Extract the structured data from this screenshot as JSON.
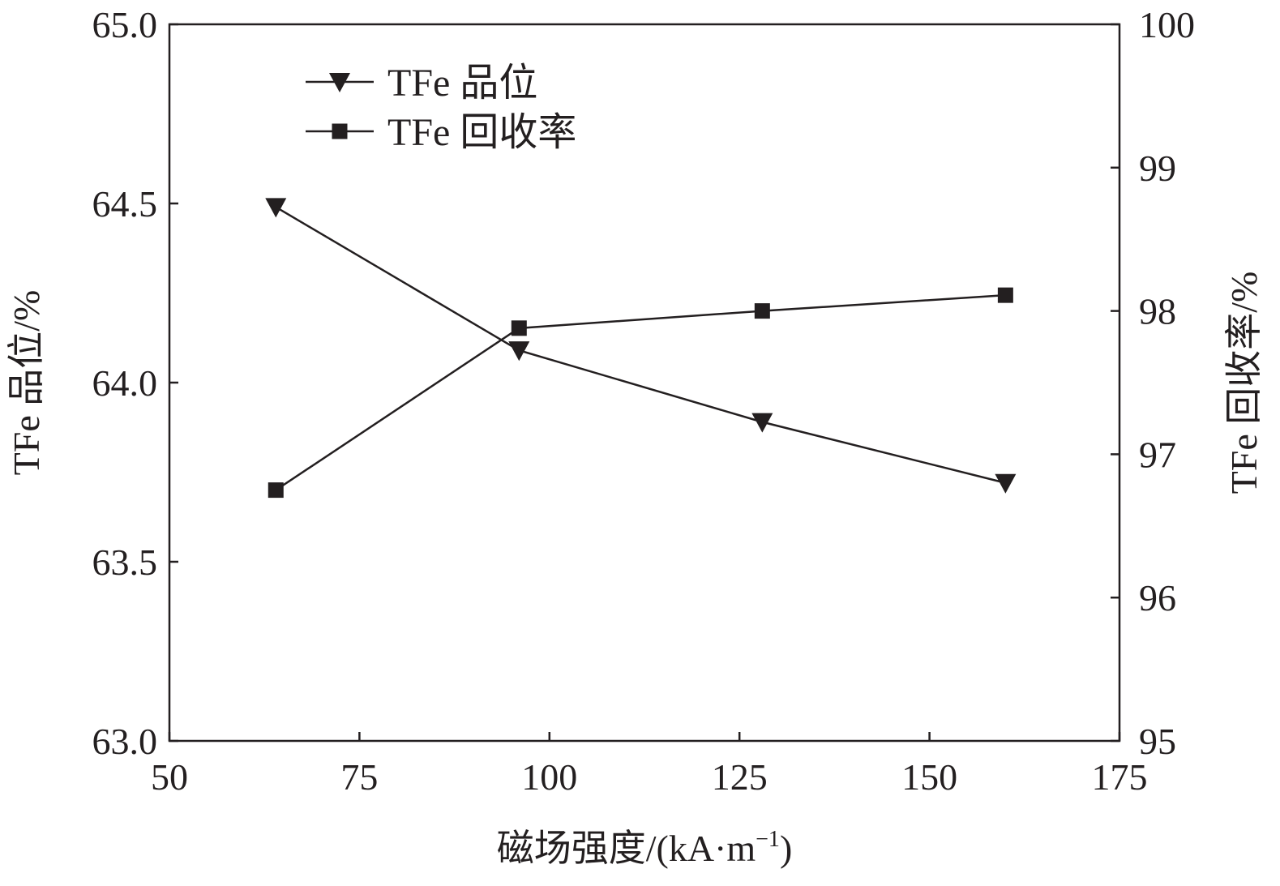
{
  "chart_data": {
    "type": "line",
    "title": "",
    "xlabel": "磁场强度/(kA·m",
    "xlabel_sup": "−1",
    "xlabel_close": ")",
    "ylabel_left": "TFe 品位/%",
    "ylabel_right": "TFe 回收率/%",
    "xlim": [
      50,
      175
    ],
    "xticks": [
      50,
      75,
      100,
      125,
      150,
      175
    ],
    "ylim_left": [
      63.0,
      65.0
    ],
    "yticks_left": [
      "63.0",
      "63.5",
      "64.0",
      "64.5",
      "65.0"
    ],
    "ylim_right": [
      95,
      100
    ],
    "yticks_right": [
      "95",
      "96",
      "97",
      "98",
      "99",
      "100"
    ],
    "grid": false,
    "legend_position": "top-left",
    "x": [
      64,
      96,
      128,
      160
    ],
    "series": [
      {
        "name": "TFe 品位",
        "axis": "left",
        "marker": "triangle-down",
        "values": [
          64.49,
          64.09,
          63.89,
          63.72
        ]
      },
      {
        "name": "TFe 回收率",
        "axis": "right",
        "marker": "square",
        "values": [
          96.75,
          97.88,
          98.0,
          98.11
        ]
      }
    ]
  }
}
